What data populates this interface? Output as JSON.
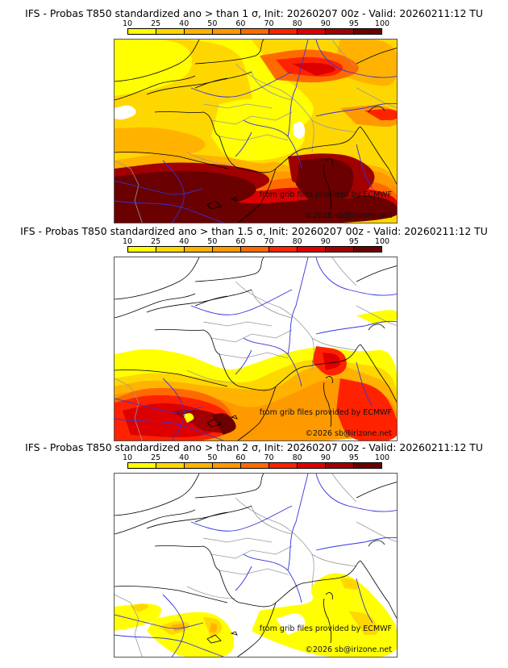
{
  "colorbar": {
    "ticks": [
      "10",
      "25",
      "40",
      "50",
      "60",
      "70",
      "80",
      "90",
      "95",
      "100"
    ],
    "colors": [
      "#ffff00",
      "#ffd700",
      "#ffb300",
      "#ff9900",
      "#ff6a00",
      "#ff2200",
      "#dd0000",
      "#a00000",
      "#6a0000"
    ]
  },
  "panels": [
    {
      "title": "IFS - Probas T850  standardized ano > than 1 σ, Init: 20260207 00z - Valid: 20260211:12 TU",
      "threshold_sigma": "1",
      "credit_source": "from grib files provided by ECMWF",
      "credit_copyright": "©2026 sb@irizone.net"
    },
    {
      "title": "IFS - Probas T850  standardized ano > than 1.5 σ, Init: 20260207 00z - Valid: 20260211:12 TU",
      "threshold_sigma": "1.5",
      "credit_source": "from grib files provided by ECMWF",
      "credit_copyright": "©2026 sb@irizone.net"
    },
    {
      "title": "IFS - Probas T850  standardized ano > than 2 σ, Init: 20260207 00z - Valid: 20260211:12 TU",
      "threshold_sigma": "2",
      "credit_source": "from grib files provided by ECMWF",
      "credit_copyright": "©2026 sb@irizone.net"
    }
  ],
  "map_styles": {
    "coastline_color": "#000000",
    "river_color": "#3333dd",
    "border_color": "#999999"
  }
}
